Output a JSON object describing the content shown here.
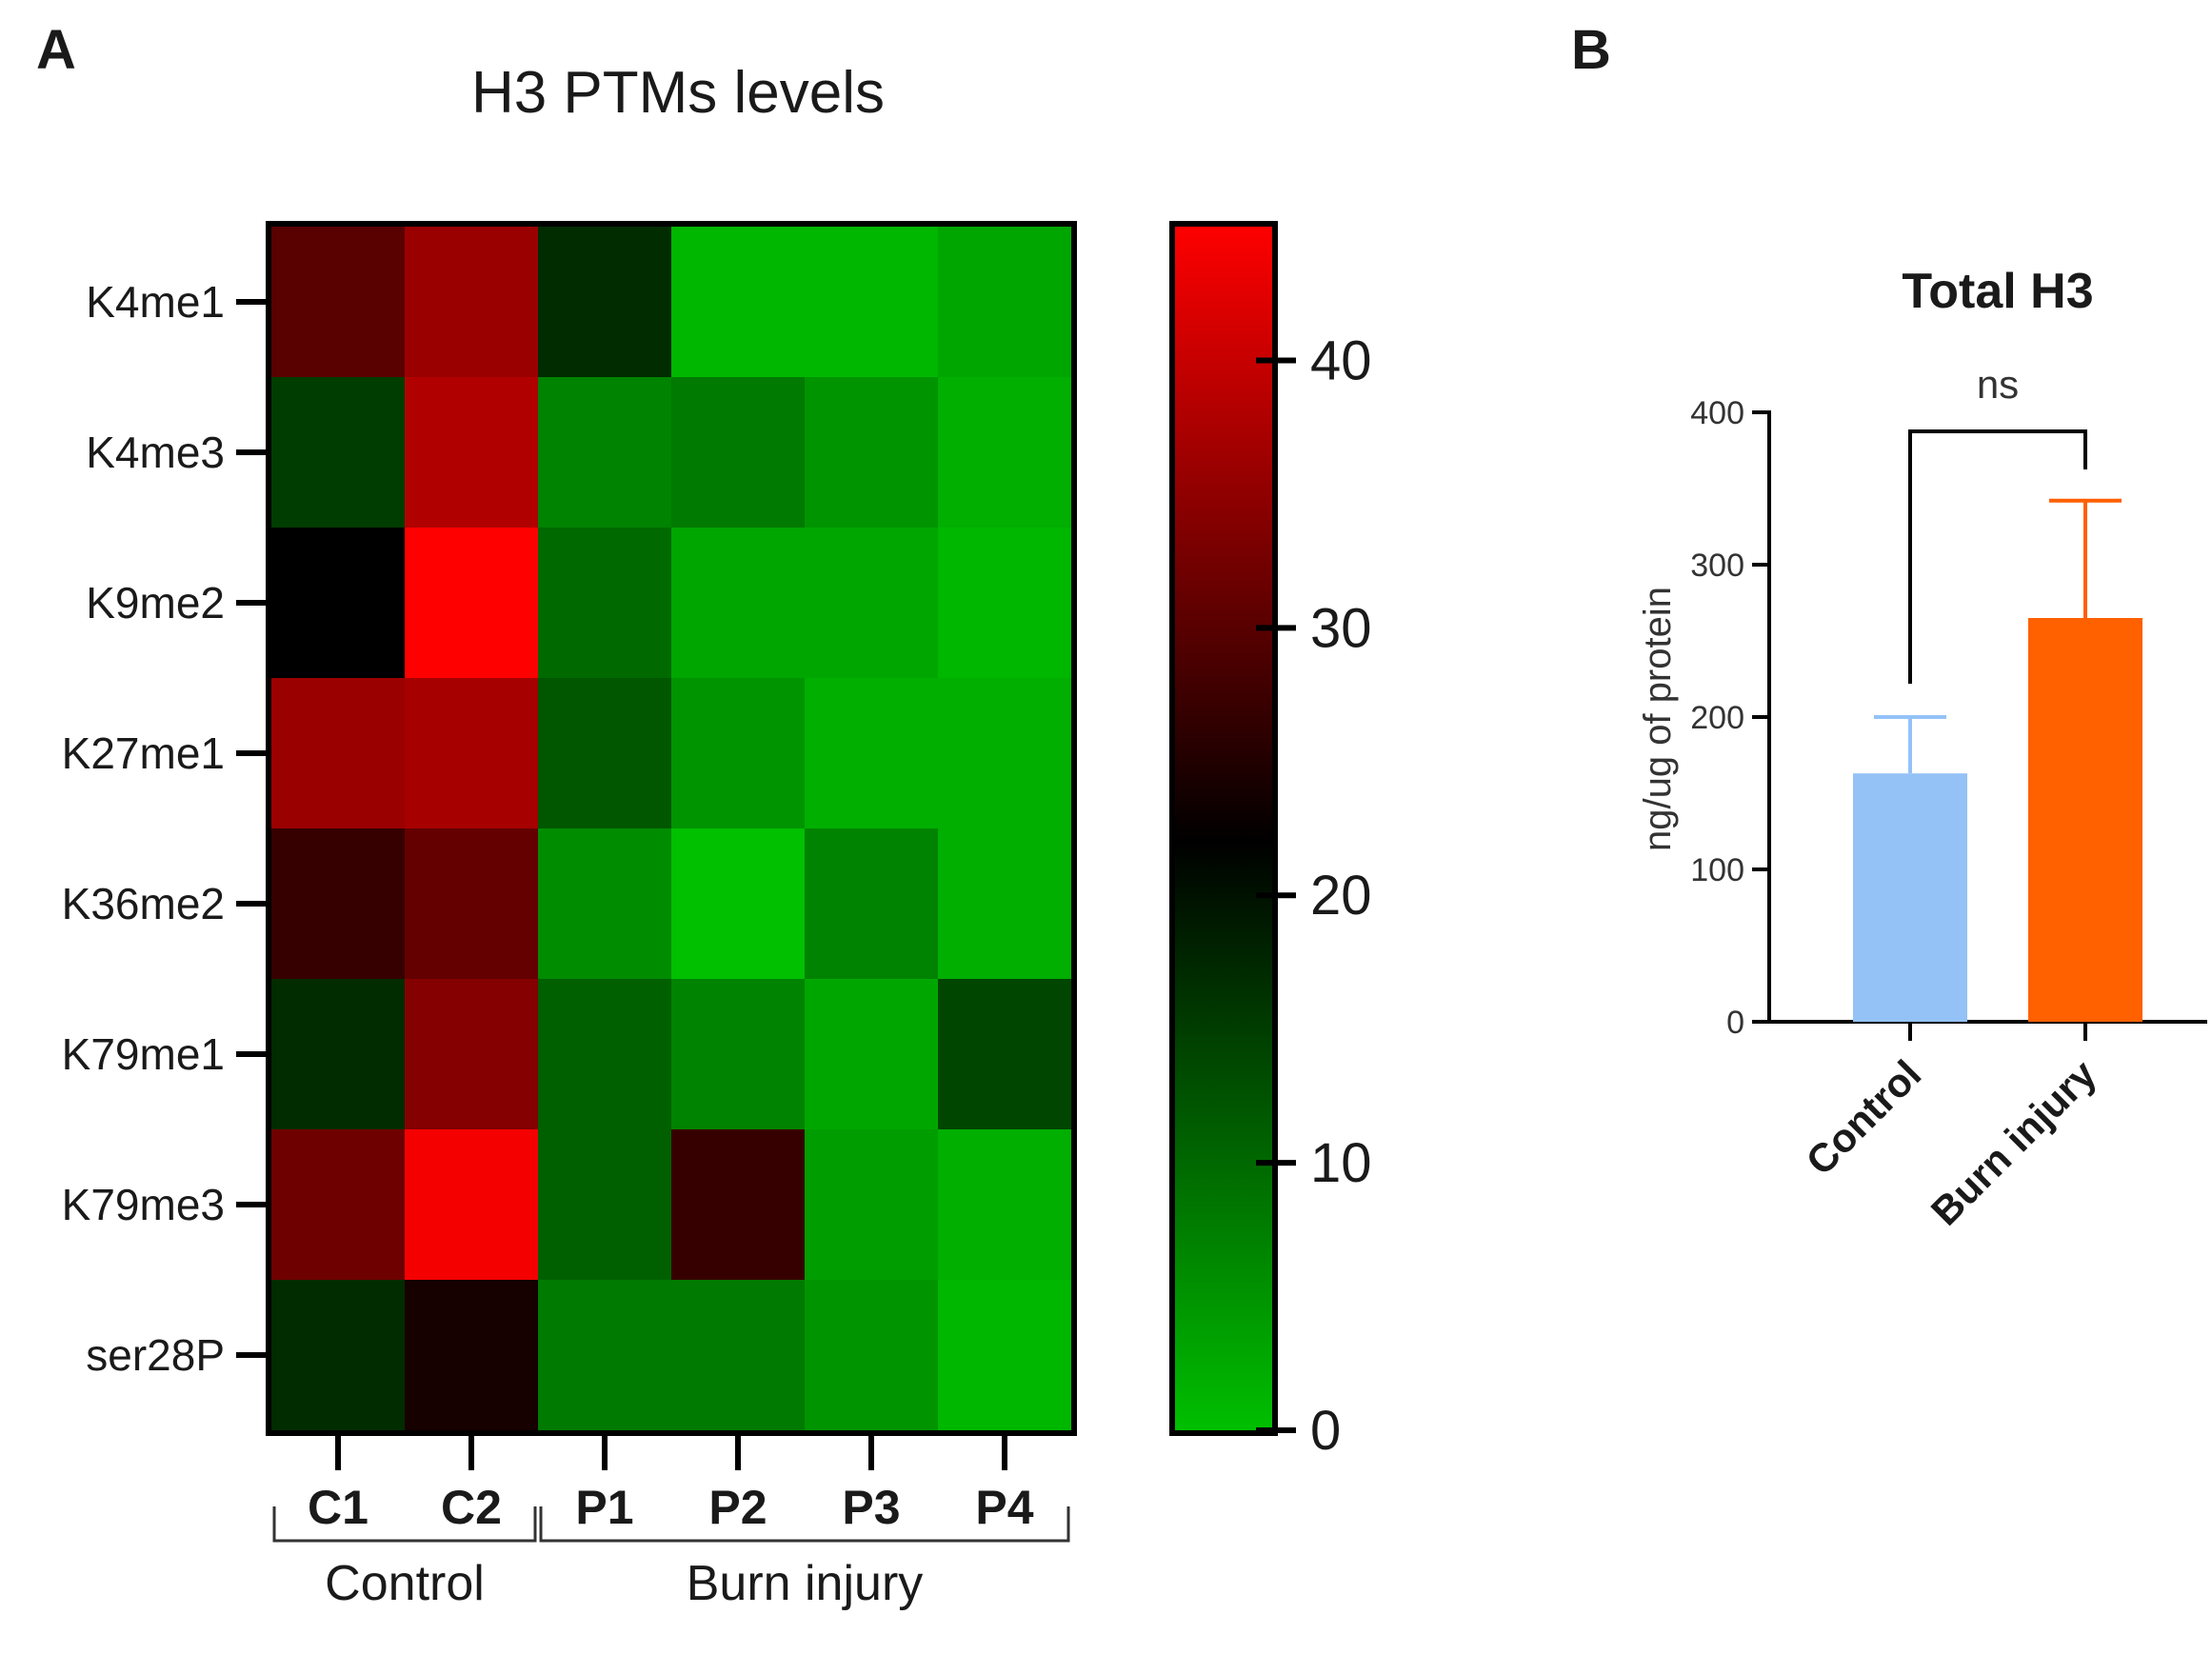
{
  "panels": {
    "a_letter": "A",
    "b_letter": "B"
  },
  "chart_data": [
    {
      "type": "heatmap",
      "title": "H3 PTMs levels",
      "rows": [
        "K4me1",
        "K4me3",
        "K9me2",
        "K27me1",
        "K36me2",
        "K79me1",
        "K79me3",
        "ser28P"
      ],
      "columns": [
        "C1",
        "C2",
        "P1",
        "P2",
        "P3",
        "P4"
      ],
      "groups": [
        {
          "label": "Control",
          "columns": [
            "C1",
            "C2"
          ]
        },
        {
          "label": "Burn injury",
          "columns": [
            "P1",
            "P2",
            "P3",
            "P4"
          ]
        }
      ],
      "values": [
        [
          30,
          36,
          17,
          1,
          1,
          3
        ],
        [
          15,
          38,
          7,
          8,
          5,
          2
        ],
        [
          22,
          45,
          10,
          3,
          3,
          1
        ],
        [
          36,
          37,
          12,
          5,
          2,
          2
        ],
        [
          27,
          31,
          6,
          0,
          7,
          2
        ],
        [
          17,
          34,
          11,
          7,
          3,
          14
        ],
        [
          32,
          44,
          11,
          27,
          4,
          2
        ],
        [
          17,
          24,
          8,
          8,
          5,
          1
        ]
      ],
      "colorbar": {
        "min": 0,
        "max": 45,
        "mid": 22,
        "ticks": [
          0,
          10,
          20,
          30,
          40
        ],
        "colors": {
          "low": "#00c000",
          "mid": "#000000",
          "high": "#ff0000"
        }
      }
    },
    {
      "type": "bar",
      "title": "Total H3",
      "categories": [
        "Control",
        "Burn injury"
      ],
      "values": [
        163,
        265
      ],
      "errors": [
        37,
        77
      ],
      "colors": [
        "#94c2f7",
        "#ff6000"
      ],
      "ylabel": "ng/ug of protein",
      "ylim": [
        0,
        400
      ],
      "yticks": [
        0,
        100,
        200,
        300,
        400
      ],
      "significance": {
        "label": "ns",
        "between": [
          "Control",
          "Burn injury"
        ]
      }
    }
  ]
}
